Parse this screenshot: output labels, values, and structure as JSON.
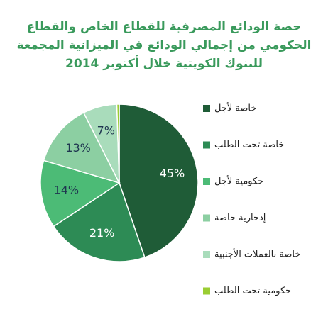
{
  "chart_data": {
    "type": "pie",
    "title": [
      "حصة الودائع المصرفية للقطاع الخاص والقطاع",
      "الحكومي من إجمالي الودائع في الميزانية المجمعة",
      "للبنوك الكويتية خلال أكتوبر 2014"
    ],
    "categories": [
      "خاصة لأجل",
      "خاصة تحت الطلب",
      "حكومية لأجل",
      "إدخارية خاصة",
      "خاصة  بالعملات الأجنبية",
      "حكومية تحت الطلب"
    ],
    "values": [
      45,
      21,
      14,
      13,
      7,
      0.5
    ],
    "value_labels": [
      "45%",
      "21%",
      "14%",
      "13%",
      "7%",
      null
    ],
    "colors": [
      "#1f5c37",
      "#2d8b55",
      "#4cbb76",
      "#8ccfa2",
      "#a9dcbb",
      "#9acd32"
    ],
    "label_colors": [
      "#ffffff",
      "#ffffff",
      "#1f3550",
      "#1f3550",
      "#1f3550",
      "#1f3550"
    ],
    "legend": "right"
  }
}
